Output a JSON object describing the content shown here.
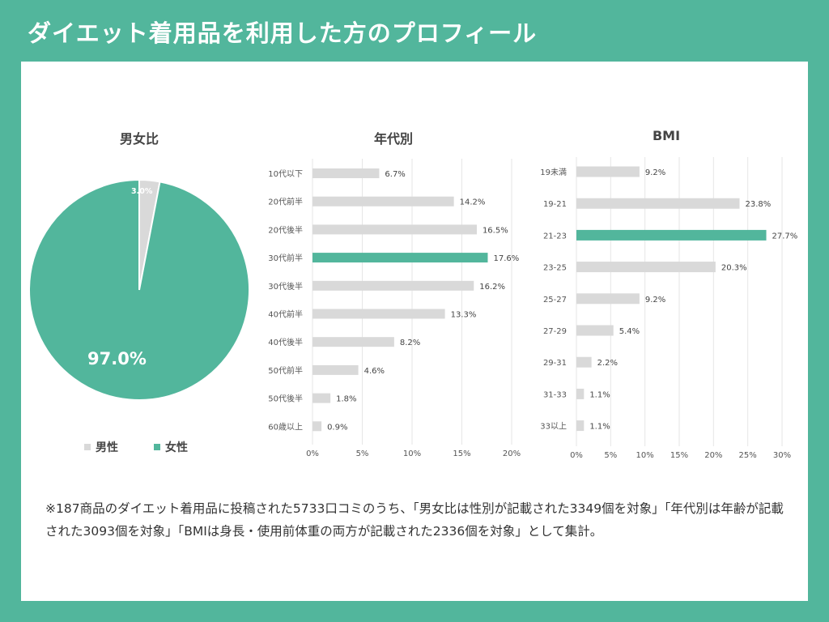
{
  "page": {
    "title": "ダイエット着用品を利用した方のプロフィール"
  },
  "colors": {
    "accent": "#52b69c",
    "neutral": "#d9d9d9",
    "background": "#ffffff"
  },
  "chart_data": [
    {
      "type": "pie",
      "title": "男女比",
      "categories": [
        "男性",
        "女性"
      ],
      "values": [
        3.0,
        97.0
      ],
      "labels": [
        "3.0%",
        "97.0%"
      ],
      "colors": [
        "#d9d9d9",
        "#52b69c"
      ],
      "legend": [
        "男性",
        "女性"
      ]
    },
    {
      "type": "bar",
      "orientation": "horizontal",
      "title": "年代別",
      "categories": [
        "10代以下",
        "20代前半",
        "20代後半",
        "30代前半",
        "30代後半",
        "40代前半",
        "40代後半",
        "50代前半",
        "50代後半",
        "60歳以上"
      ],
      "values": [
        6.7,
        14.2,
        16.5,
        17.6,
        16.2,
        13.3,
        8.2,
        4.6,
        1.8,
        0.9
      ],
      "labels": [
        "6.7%",
        "14.2%",
        "16.5%",
        "17.6%",
        "16.2%",
        "13.3%",
        "8.2%",
        "4.6%",
        "1.8%",
        "0.9%"
      ],
      "highlight_index": 3,
      "xlim": [
        0,
        20
      ],
      "ticks": [
        "0%",
        "5%",
        "10%",
        "15%",
        "20%"
      ]
    },
    {
      "type": "bar",
      "orientation": "horizontal",
      "title": "BMI",
      "categories": [
        "19未満",
        "19-21",
        "21-23",
        "23-25",
        "25-27",
        "27-29",
        "29-31",
        "31-33",
        "33以上"
      ],
      "values": [
        9.2,
        23.8,
        27.7,
        20.3,
        9.2,
        5.4,
        2.2,
        1.1,
        1.1
      ],
      "labels": [
        "9.2%",
        "23.8%",
        "27.7%",
        "20.3%",
        "9.2%",
        "5.4%",
        "2.2%",
        "1.1%",
        "1.1%"
      ],
      "highlight_index": 2,
      "xlim": [
        0,
        30
      ],
      "ticks": [
        "0%",
        "5%",
        "10%",
        "15%",
        "20%",
        "25%",
        "30%"
      ]
    }
  ],
  "footnote": "※187商品のダイエット着用品に投稿された5733口コミのうち、「男女比は性別が記載された3349個を対象」「年代別は年齢が記載された3093個を対象」「BMIは身長・使用前体重の両方が記載された2336個を対象」として集計。"
}
